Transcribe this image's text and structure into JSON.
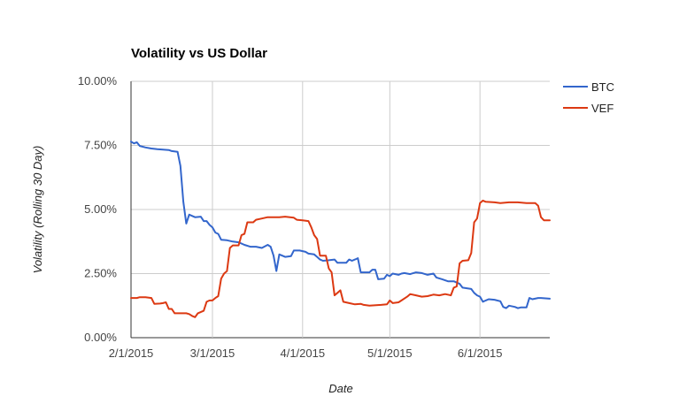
{
  "chart_data": {
    "type": "line",
    "title": "Volatility vs US Dollar",
    "xlabel": "Date",
    "ylabel": "Volatility (Rolling 30 Day)",
    "ylim": [
      0,
      10
    ],
    "y_ticks": [
      "0.00%",
      "2.50%",
      "5.00%",
      "7.50%",
      "10.00%"
    ],
    "y_tick_values": [
      0,
      2.5,
      5,
      7.5,
      10
    ],
    "x_ticks": [
      "2/1/2015",
      "3/1/2015",
      "4/1/2015",
      "5/1/2015",
      "6/1/2015"
    ],
    "x_tick_dates": [
      "2015-02-01",
      "2015-03-01",
      "2015-04-01",
      "2015-05-01",
      "2015-06-01"
    ],
    "xlim": [
      "2015-02-01",
      "2015-06-25"
    ],
    "grid": true,
    "legend_position": "right",
    "series": [
      {
        "name": "BTC",
        "color": "#3366cc",
        "points": [
          [
            "2015-02-01",
            7.65
          ],
          [
            "2015-02-02",
            7.58
          ],
          [
            "2015-02-03",
            7.62
          ],
          [
            "2015-02-04",
            7.48
          ],
          [
            "2015-02-06",
            7.42
          ],
          [
            "2015-02-08",
            7.38
          ],
          [
            "2015-02-10",
            7.35
          ],
          [
            "2015-02-14",
            7.32
          ],
          [
            "2015-02-15",
            7.28
          ],
          [
            "2015-02-17",
            7.25
          ],
          [
            "2015-02-18",
            6.7
          ],
          [
            "2015-02-19",
            5.3
          ],
          [
            "2015-02-20",
            4.45
          ],
          [
            "2015-02-21",
            4.8
          ],
          [
            "2015-02-23",
            4.7
          ],
          [
            "2015-02-25",
            4.72
          ],
          [
            "2015-02-26",
            4.55
          ],
          [
            "2015-02-27",
            4.55
          ],
          [
            "2015-02-28",
            4.4
          ],
          [
            "2015-03-01",
            4.3
          ],
          [
            "2015-03-02",
            4.1
          ],
          [
            "2015-03-03",
            4.05
          ],
          [
            "2015-03-04",
            3.82
          ],
          [
            "2015-03-06",
            3.8
          ],
          [
            "2015-03-08",
            3.75
          ],
          [
            "2015-03-10",
            3.72
          ],
          [
            "2015-03-12",
            3.62
          ],
          [
            "2015-03-14",
            3.55
          ],
          [
            "2015-03-16",
            3.55
          ],
          [
            "2015-03-18",
            3.5
          ],
          [
            "2015-03-20",
            3.62
          ],
          [
            "2015-03-21",
            3.55
          ],
          [
            "2015-03-22",
            3.2
          ],
          [
            "2015-03-23",
            2.6
          ],
          [
            "2015-03-24",
            3.25
          ],
          [
            "2015-03-26",
            3.15
          ],
          [
            "2015-03-28",
            3.18
          ],
          [
            "2015-03-29",
            3.4
          ],
          [
            "2015-03-31",
            3.4
          ],
          [
            "2015-04-02",
            3.35
          ],
          [
            "2015-04-03",
            3.28
          ],
          [
            "2015-04-05",
            3.25
          ],
          [
            "2015-04-06",
            3.15
          ],
          [
            "2015-04-07",
            3.05
          ],
          [
            "2015-04-08",
            3.0
          ],
          [
            "2015-04-10",
            3.02
          ],
          [
            "2015-04-12",
            3.05
          ],
          [
            "2015-04-13",
            2.92
          ],
          [
            "2015-04-16",
            2.92
          ],
          [
            "2015-04-17",
            3.05
          ],
          [
            "2015-04-18",
            3.0
          ],
          [
            "2015-04-19",
            3.05
          ],
          [
            "2015-04-20",
            3.1
          ],
          [
            "2015-04-21",
            2.55
          ],
          [
            "2015-04-24",
            2.55
          ],
          [
            "2015-04-25",
            2.65
          ],
          [
            "2015-04-26",
            2.65
          ],
          [
            "2015-04-27",
            2.28
          ],
          [
            "2015-04-29",
            2.3
          ],
          [
            "2015-04-30",
            2.45
          ],
          [
            "2015-05-01",
            2.4
          ],
          [
            "2015-05-02",
            2.5
          ],
          [
            "2015-05-04",
            2.45
          ],
          [
            "2015-05-05",
            2.5
          ],
          [
            "2015-05-06",
            2.52
          ],
          [
            "2015-05-08",
            2.48
          ],
          [
            "2015-05-10",
            2.55
          ],
          [
            "2015-05-12",
            2.52
          ],
          [
            "2015-05-14",
            2.45
          ],
          [
            "2015-05-16",
            2.5
          ],
          [
            "2015-05-17",
            2.35
          ],
          [
            "2015-05-19",
            2.28
          ],
          [
            "2015-05-21",
            2.2
          ],
          [
            "2015-05-23",
            2.2
          ],
          [
            "2015-05-25",
            2.1
          ],
          [
            "2015-05-26",
            1.95
          ],
          [
            "2015-05-29",
            1.9
          ],
          [
            "2015-05-30",
            1.75
          ],
          [
            "2015-05-31",
            1.65
          ],
          [
            "2015-06-01",
            1.6
          ],
          [
            "2015-06-02",
            1.4
          ],
          [
            "2015-06-03",
            1.45
          ],
          [
            "2015-06-04",
            1.5
          ],
          [
            "2015-06-06",
            1.48
          ],
          [
            "2015-06-08",
            1.42
          ],
          [
            "2015-06-09",
            1.2
          ],
          [
            "2015-06-10",
            1.15
          ],
          [
            "2015-06-11",
            1.25
          ],
          [
            "2015-06-13",
            1.2
          ],
          [
            "2015-06-14",
            1.15
          ],
          [
            "2015-06-15",
            1.18
          ],
          [
            "2015-06-17",
            1.18
          ],
          [
            "2015-06-18",
            1.55
          ],
          [
            "2015-06-19",
            1.5
          ],
          [
            "2015-06-21",
            1.55
          ],
          [
            "2015-06-22",
            1.55
          ],
          [
            "2015-06-25",
            1.52
          ]
        ]
      },
      {
        "name": "VEF",
        "color": "#dc3912",
        "points": [
          [
            "2015-02-01",
            1.55
          ],
          [
            "2015-02-03",
            1.55
          ],
          [
            "2015-02-04",
            1.58
          ],
          [
            "2015-02-06",
            1.58
          ],
          [
            "2015-02-08",
            1.55
          ],
          [
            "2015-02-09",
            1.32
          ],
          [
            "2015-02-11",
            1.33
          ],
          [
            "2015-02-12",
            1.35
          ],
          [
            "2015-02-13",
            1.38
          ],
          [
            "2015-02-14",
            1.12
          ],
          [
            "2015-02-15",
            1.12
          ],
          [
            "2015-02-16",
            0.95
          ],
          [
            "2015-02-18",
            0.95
          ],
          [
            "2015-02-20",
            0.95
          ],
          [
            "2015-02-21",
            0.92
          ],
          [
            "2015-02-22",
            0.85
          ],
          [
            "2015-02-23",
            0.8
          ],
          [
            "2015-02-24",
            0.95
          ],
          [
            "2015-02-26",
            1.05
          ],
          [
            "2015-02-27",
            1.4
          ],
          [
            "2015-02-28",
            1.45
          ],
          [
            "2015-03-01",
            1.45
          ],
          [
            "2015-03-02",
            1.55
          ],
          [
            "2015-03-03",
            1.62
          ],
          [
            "2015-03-04",
            2.3
          ],
          [
            "2015-03-05",
            2.5
          ],
          [
            "2015-03-06",
            2.6
          ],
          [
            "2015-03-07",
            3.5
          ],
          [
            "2015-03-08",
            3.6
          ],
          [
            "2015-03-10",
            3.6
          ],
          [
            "2015-03-11",
            4.0
          ],
          [
            "2015-03-12",
            4.05
          ],
          [
            "2015-03-13",
            4.5
          ],
          [
            "2015-03-15",
            4.5
          ],
          [
            "2015-03-16",
            4.6
          ],
          [
            "2015-03-18",
            4.65
          ],
          [
            "2015-03-20",
            4.7
          ],
          [
            "2015-03-24",
            4.7
          ],
          [
            "2015-03-26",
            4.72
          ],
          [
            "2015-03-29",
            4.68
          ],
          [
            "2015-03-30",
            4.6
          ],
          [
            "2015-04-01",
            4.58
          ],
          [
            "2015-04-03",
            4.55
          ],
          [
            "2015-04-04",
            4.3
          ],
          [
            "2015-04-05",
            4.0
          ],
          [
            "2015-04-06",
            3.85
          ],
          [
            "2015-04-07",
            3.2
          ],
          [
            "2015-04-09",
            3.2
          ],
          [
            "2015-04-10",
            2.7
          ],
          [
            "2015-04-11",
            2.55
          ],
          [
            "2015-04-12",
            1.65
          ],
          [
            "2015-04-13",
            1.75
          ],
          [
            "2015-04-14",
            1.85
          ],
          [
            "2015-04-15",
            1.4
          ],
          [
            "2015-04-17",
            1.35
          ],
          [
            "2015-04-19",
            1.3
          ],
          [
            "2015-04-21",
            1.32
          ],
          [
            "2015-04-22",
            1.28
          ],
          [
            "2015-04-24",
            1.25
          ],
          [
            "2015-04-28",
            1.28
          ],
          [
            "2015-04-30",
            1.3
          ],
          [
            "2015-05-01",
            1.45
          ],
          [
            "2015-05-02",
            1.35
          ],
          [
            "2015-05-04",
            1.38
          ],
          [
            "2015-05-05",
            1.45
          ],
          [
            "2015-05-07",
            1.6
          ],
          [
            "2015-05-08",
            1.7
          ],
          [
            "2015-05-10",
            1.65
          ],
          [
            "2015-05-12",
            1.6
          ],
          [
            "2015-05-14",
            1.62
          ],
          [
            "2015-05-16",
            1.68
          ],
          [
            "2015-05-18",
            1.65
          ],
          [
            "2015-05-20",
            1.7
          ],
          [
            "2015-05-22",
            1.65
          ],
          [
            "2015-05-23",
            1.95
          ],
          [
            "2015-05-24",
            2.0
          ],
          [
            "2015-05-25",
            2.9
          ],
          [
            "2015-05-26",
            3.0
          ],
          [
            "2015-05-28",
            3.02
          ],
          [
            "2015-05-29",
            3.3
          ],
          [
            "2015-05-30",
            4.5
          ],
          [
            "2015-05-31",
            4.65
          ],
          [
            "2015-06-01",
            5.25
          ],
          [
            "2015-06-02",
            5.35
          ],
          [
            "2015-06-03",
            5.3
          ],
          [
            "2015-06-06",
            5.28
          ],
          [
            "2015-06-08",
            5.25
          ],
          [
            "2015-06-11",
            5.28
          ],
          [
            "2015-06-14",
            5.28
          ],
          [
            "2015-06-17",
            5.25
          ],
          [
            "2015-06-20",
            5.25
          ],
          [
            "2015-06-21",
            5.15
          ],
          [
            "2015-06-22",
            4.7
          ],
          [
            "2015-06-23",
            4.58
          ],
          [
            "2015-06-25",
            4.58
          ]
        ]
      }
    ]
  }
}
